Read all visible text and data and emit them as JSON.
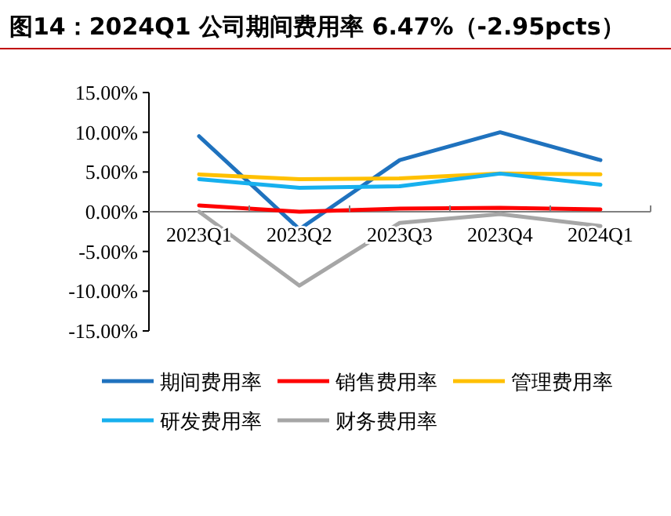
{
  "chart_data": {
    "type": "line",
    "title": "图14：2024Q1 公司期间费用率 6.47%（-2.95pcts）",
    "categories": [
      "2023Q1",
      "2023Q2",
      "2023Q3",
      "2023Q4",
      "2024Q1"
    ],
    "series": [
      {
        "name": "期间费用率",
        "color": "#1f72be",
        "values": [
          9.5,
          -2.2,
          6.5,
          10.0,
          6.5
        ]
      },
      {
        "name": "销售费用率",
        "color": "#ff0000",
        "values": [
          0.8,
          0.0,
          0.4,
          0.5,
          0.3
        ]
      },
      {
        "name": "管理费用率",
        "color": "#ffc000",
        "values": [
          4.7,
          4.1,
          4.2,
          4.8,
          4.7
        ]
      },
      {
        "name": "研发费用率",
        "color": "#17b0ee",
        "values": [
          4.1,
          3.0,
          3.2,
          4.8,
          3.4
        ]
      },
      {
        "name": "财务费用率",
        "color": "#a6a6a6",
        "values": [
          0.0,
          -9.3,
          -1.4,
          -0.3,
          -1.8
        ]
      }
    ],
    "ylim": [
      -15,
      15
    ],
    "yticks": [
      {
        "value": -15,
        "label": "-15.00%"
      },
      {
        "value": -10,
        "label": "-10.00%"
      },
      {
        "value": -5,
        "label": "-5.00%"
      },
      {
        "value": 0,
        "label": "0.00%"
      },
      {
        "value": 5,
        "label": "5.00%"
      },
      {
        "value": 10,
        "label": "10.00%"
      },
      {
        "value": 15,
        "label": "15.00%"
      }
    ],
    "grid": false,
    "legend": "bottom",
    "marker": "none",
    "line_style": "solid"
  }
}
